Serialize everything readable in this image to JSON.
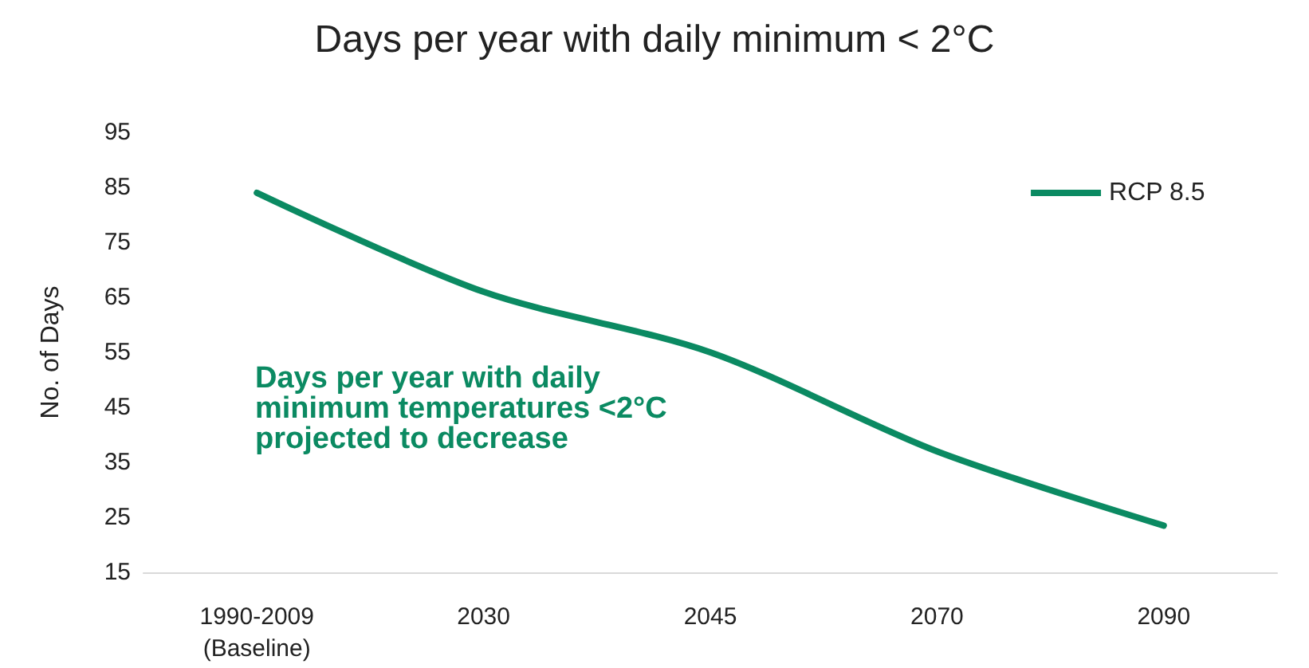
{
  "chart_data": {
    "type": "line",
    "title": "Days per year with daily minimum < 2°C",
    "ylabel": "No. of Days",
    "categories": [
      "1990-2009\n(Baseline)",
      "2030",
      "2045",
      "2070",
      "2090"
    ],
    "series": [
      {
        "name": "RCP 8.5",
        "color": "#0b8a62",
        "values": [
          84,
          66,
          55,
          37,
          23.5
        ]
      }
    ],
    "ylim": [
      15,
      95
    ],
    "yticks": [
      15,
      25,
      35,
      45,
      55,
      65,
      75,
      85,
      95
    ],
    "grid": false,
    "legend": "top right",
    "marker": "none",
    "line_style": "solid",
    "annotations": [
      {
        "text": "Days per year with daily\nminimum temperatures <2°C\nprojected to decrease"
      }
    ]
  }
}
